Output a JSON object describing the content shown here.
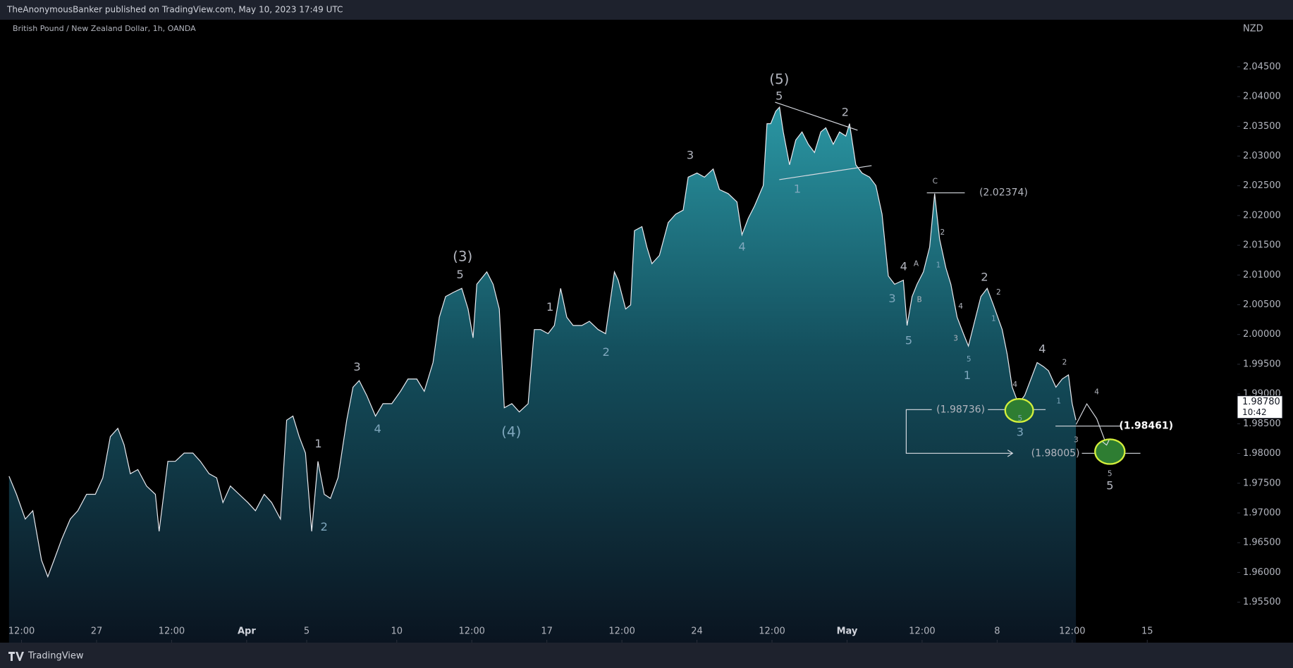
{
  "chart_data": {
    "type": "area",
    "published": "TheAnonymousBanker published on TradingView.com, May 10, 2023 17:49 UTC",
    "title": "British Pound / New Zealand Dollar, 1h, OANDA",
    "brand": "TradingView",
    "currency": "NZD",
    "color": "#e8eaf0",
    "x": [
      -70,
      -64,
      -57,
      -51,
      -44,
      -39,
      -34,
      -28,
      -21,
      -15,
      -8,
      -1,
      5,
      11,
      17,
      22,
      27,
      33,
      40,
      47,
      50,
      57,
      63,
      70,
      77,
      83,
      90,
      96,
      101,
      107,
      114,
      121,
      127,
      134,
      140,
      147,
      152,
      157,
      162,
      167,
      172,
      177,
      182,
      187,
      193,
      200,
      205,
      210,
      216,
      223,
      229,
      236,
      243,
      249,
      256,
      262,
      269,
      274,
      279,
      285,
      292,
      297,
      301,
      304,
      312,
      317,
      322,
      326,
      332,
      338,
      345,
      350,
      355,
      361,
      366,
      371,
      376,
      381,
      388,
      394,
      401,
      407,
      414,
      417,
      423,
      427,
      430,
      436,
      440,
      444,
      450,
      457,
      463,
      469,
      473,
      480,
      486,
      493,
      498,
      505,
      512,
      516,
      521,
      526,
      533,
      536,
      539,
      543,
      546,
      549,
      554,
      559,
      564,
      569,
      574,
      579,
      583,
      589,
      594,
      599,
      602,
      607,
      612,
      618,
      623,
      628,
      633,
      638,
      645,
      648,
      652,
      656,
      661,
      666,
      670,
      674,
      679,
      683,
      688,
      693,
      697,
      702,
      707,
      712,
      717,
      724,
      728,
      732,
      737,
      742,
      747,
      752,
      757,
      761,
      767,
      772,
      777,
      780,
      783
    ],
    "values": [
      1.97618,
      1.97314,
      1.96898,
      1.97037,
      1.96206,
      1.95929,
      1.96206,
      1.96552,
      1.96898,
      1.97037,
      1.97314,
      1.97314,
      1.97591,
      1.98283,
      1.98422,
      1.98145,
      1.9766,
      1.97729,
      1.97452,
      1.97314,
      1.96691,
      1.97868,
      1.97868,
      1.98006,
      1.98006,
      1.97868,
      1.9766,
      1.97591,
      1.97175,
      1.97452,
      1.97314,
      1.97175,
      1.97037,
      1.97314,
      1.97175,
      1.96898,
      1.9856,
      1.98629,
      1.98283,
      1.98006,
      1.96691,
      1.97868,
      1.97314,
      1.97245,
      1.97591,
      1.9856,
      1.99114,
      1.99225,
      1.98975,
      1.98629,
      1.98837,
      1.98837,
      1.99045,
      1.99252,
      1.99252,
      1.99045,
      1.99529,
      2.00291,
      2.00637,
      2.00706,
      2.00776,
      2.00429,
      1.99945,
      2.00845,
      2.01052,
      2.00845,
      2.00429,
      1.98768,
      1.98837,
      1.98698,
      1.98837,
      2.00083,
      2.00083,
      2.00014,
      2.00152,
      2.00776,
      2.00291,
      2.00152,
      2.00152,
      2.00222,
      2.00083,
      2.00014,
      2.01052,
      2.00914,
      2.00429,
      2.00498,
      2.01745,
      2.01814,
      2.01468,
      2.01191,
      2.01329,
      2.01883,
      2.02022,
      2.02091,
      2.02645,
      2.02714,
      2.02645,
      2.02783,
      2.02437,
      2.02368,
      2.02229,
      2.01676,
      2.01953,
      2.0216,
      2.02506,
      2.03545,
      2.03545,
      2.03753,
      2.03822,
      2.03406,
      2.02853,
      2.03268,
      2.03406,
      2.03199,
      2.0306,
      2.03406,
      2.03476,
      2.03199,
      2.03406,
      2.03337,
      2.03545,
      2.02853,
      2.02714,
      2.02645,
      2.02506,
      2.02022,
      2.00983,
      2.00845,
      2.00914,
      2.00152,
      2.00637,
      2.00845,
      2.01052,
      2.01468,
      2.02368,
      2.01606,
      2.01122,
      2.00845,
      2.00291,
      2.00014,
      1.99806,
      2.0022,
      2.00637,
      2.00776,
      2.00498,
      2.00083,
      1.99668,
      1.99114,
      1.98837,
      1.98975,
      1.99252,
      1.99529,
      1.99461,
      1.99391,
      1.99114,
      1.99252,
      1.99322,
      1.98837,
      1.9856
    ],
    "xlim": [
      -71,
      912
    ],
    "xticks": [
      {
        "value": -60,
        "label": "12:00"
      },
      {
        "value": 0,
        "label": "27"
      },
      {
        "value": 60,
        "label": "12:00"
      },
      {
        "value": 120,
        "label": "Apr"
      },
      {
        "value": 168,
        "label": "5"
      },
      {
        "value": 240,
        "label": "10"
      },
      {
        "value": 300,
        "label": "12:00"
      },
      {
        "value": 360,
        "label": "17"
      },
      {
        "value": 420,
        "label": "12:00"
      },
      {
        "value": 480,
        "label": "24"
      },
      {
        "value": 540,
        "label": "12:00"
      },
      {
        "value": 600,
        "label": "May"
      },
      {
        "value": 660,
        "label": "12:00"
      },
      {
        "value": 720,
        "label": "8"
      },
      {
        "value": 780,
        "label": "12:00"
      },
      {
        "value": 840,
        "label": "15"
      }
    ],
    "ylim": [
      1.9482,
      2.0528
    ],
    "yticks": [
      {
        "value": 1.955,
        "label": "1.95500"
      },
      {
        "value": 1.96,
        "label": "1.96000"
      },
      {
        "value": 1.965,
        "label": "1.96500"
      },
      {
        "value": 1.97,
        "label": "1.97000"
      },
      {
        "value": 1.975,
        "label": "1.97500"
      },
      {
        "value": 1.98,
        "label": "1.98000"
      },
      {
        "value": 1.985,
        "label": "1.98500"
      },
      {
        "value": 1.99,
        "label": "1.99000"
      },
      {
        "value": 1.995,
        "label": "1.99500"
      },
      {
        "value": 2.0,
        "label": "2.00000"
      },
      {
        "value": 2.005,
        "label": "2.00500"
      },
      {
        "value": 2.01,
        "label": "2.01000"
      },
      {
        "value": 2.015,
        "label": "2.01500"
      },
      {
        "value": 2.02,
        "label": "2.02000"
      },
      {
        "value": 2.025,
        "label": "2.02500"
      },
      {
        "value": 2.03,
        "label": "2.03000"
      },
      {
        "value": 2.035,
        "label": "2.03500"
      },
      {
        "value": 2.04,
        "label": "2.04000"
      },
      {
        "value": 2.045,
        "label": "2.04500"
      }
    ],
    "last_price": {
      "value": 1.9878,
      "label": "1.98780"
    },
    "countdown": "10:42",
    "annotations": [
      "(5)",
      "5",
      "2",
      "3",
      "1",
      "4",
      "(3)",
      "5",
      "1",
      "2",
      "3",
      "4",
      "(4)",
      "1",
      "2",
      "C",
      "2",
      "1",
      "A",
      "4",
      "3",
      "B",
      "5",
      "4",
      "3",
      "5",
      "1",
      "2",
      "2",
      "1",
      "4",
      "2",
      "1",
      "4",
      "3",
      "4",
      "3",
      "5",
      "5",
      "5"
    ],
    "levels": [
      "(2.02374)",
      "(1.98736)",
      "(1.98005)",
      "(1.98461)"
    ]
  }
}
